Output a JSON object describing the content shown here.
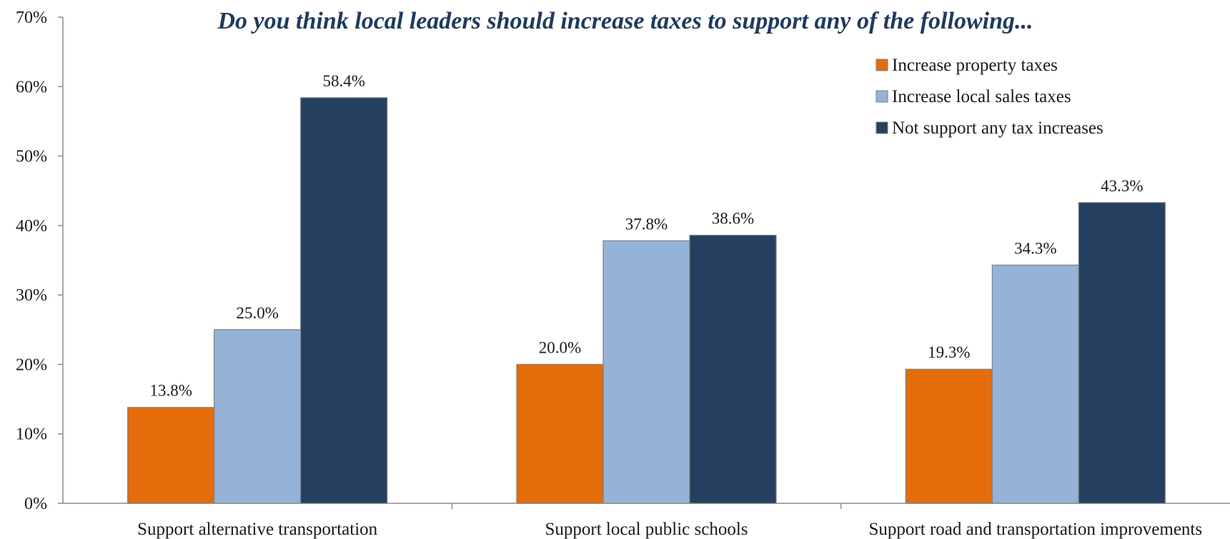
{
  "chart_data": {
    "type": "bar",
    "title": "Do you think local leaders should increase taxes to support any of  the following...",
    "categories": [
      "Support alternative transportation",
      "Support local public schools",
      "Support road and transportation improvements"
    ],
    "series": [
      {
        "name": "Increase property taxes",
        "color": "#e46c0a",
        "values": [
          13.8,
          20.0,
          19.3
        ],
        "labels": [
          "13.8%",
          "20.0%",
          "19.3%"
        ]
      },
      {
        "name": "Increase local sales taxes",
        "color": "#95b3d7",
        "values": [
          25.0,
          37.8,
          34.3
        ],
        "labels": [
          "25.0%",
          "37.8%",
          "34.3%"
        ]
      },
      {
        "name": "Not support any tax increases",
        "color": "#243f60",
        "values": [
          58.4,
          38.6,
          43.3
        ],
        "labels": [
          "58.4%",
          "38.6%",
          "43.3%"
        ]
      }
    ],
    "ylim": [
      0,
      70
    ],
    "yticks": [
      0,
      10,
      20,
      30,
      40,
      50,
      60,
      70
    ],
    "ytick_labels": [
      "0%",
      "10%",
      "20%",
      "30%",
      "40%",
      "50%",
      "60%",
      "70%"
    ],
    "xlabel": "",
    "ylabel": "",
    "grid": false,
    "legend_position": "top-right"
  }
}
